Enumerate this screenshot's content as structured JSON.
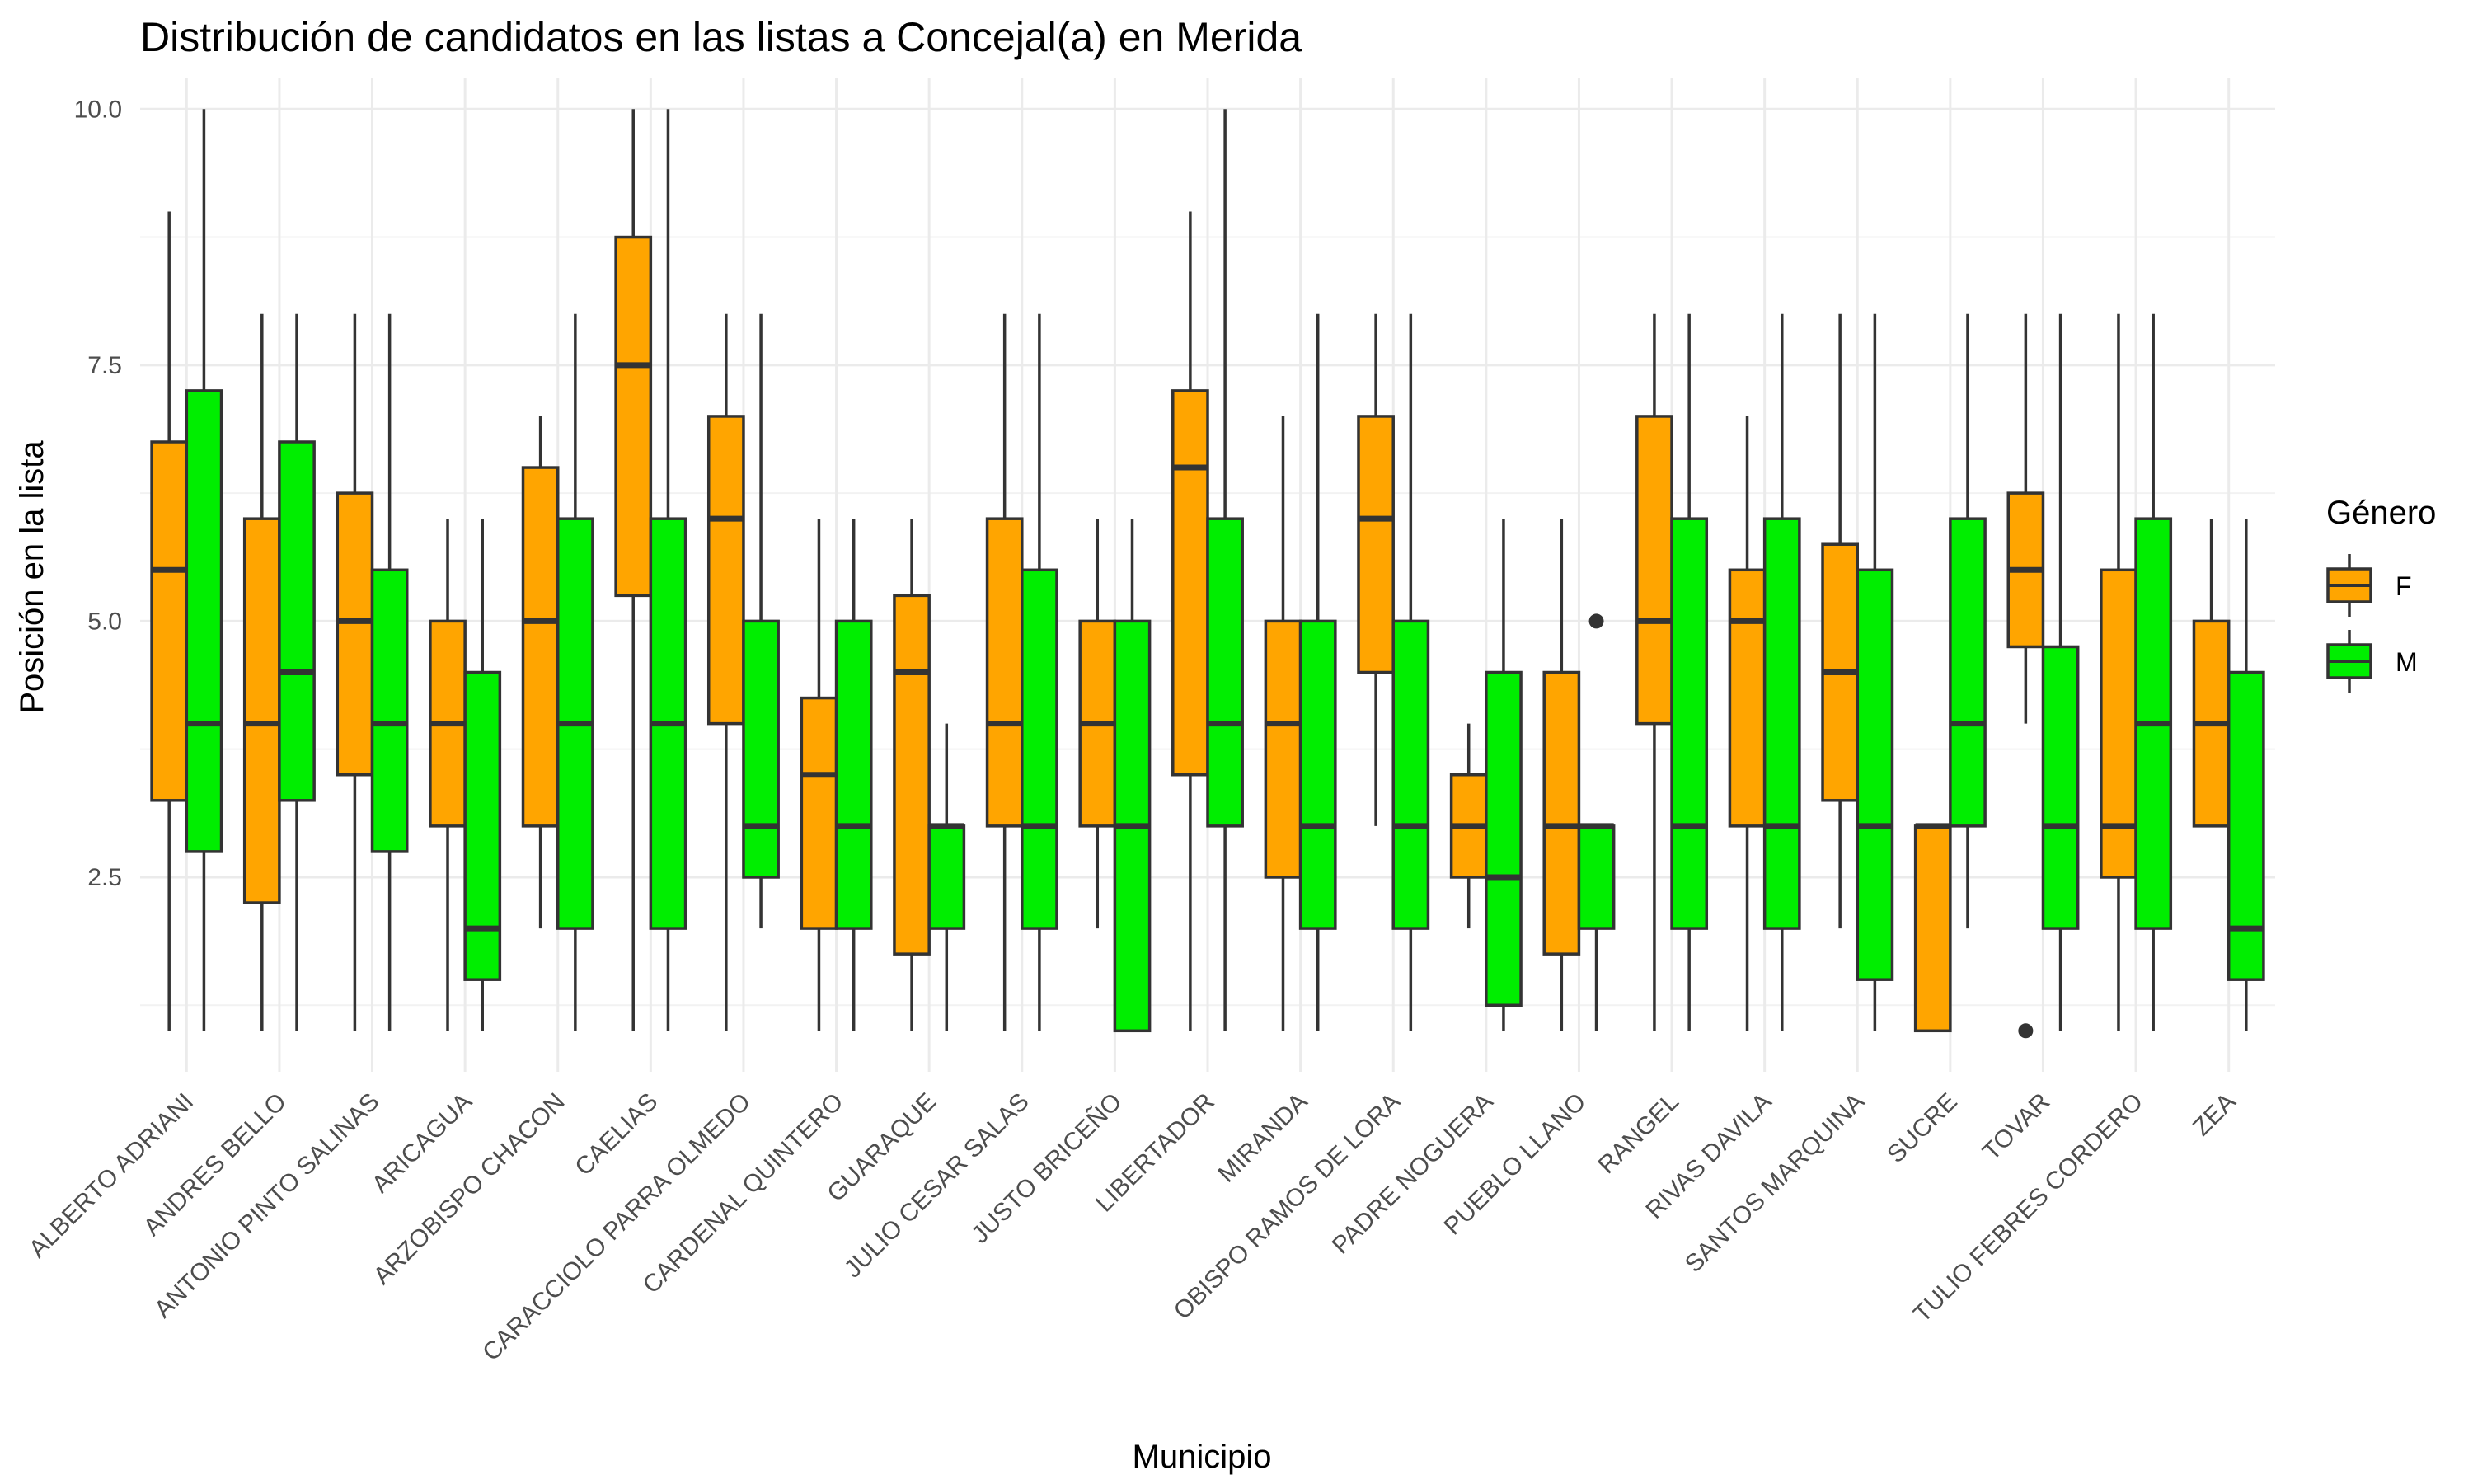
{
  "chart_data": {
    "type": "boxplot",
    "title": "Distribución de candidatos en las listas a Concejal(a) en Merida",
    "xlabel": "Municipio",
    "ylabel": "Posición en la lista",
    "ylim": [
      0.6,
      10.3
    ],
    "yticks": [
      2.5,
      5.0,
      7.5,
      10.0
    ],
    "ytick_labels": [
      "2.5",
      "5.0",
      "7.5",
      "10.0"
    ],
    "grid": true,
    "legend": {
      "title": "Género",
      "placement": "right",
      "entries": [
        {
          "key": "F",
          "color": "#FFA500"
        },
        {
          "key": "M",
          "color": "#00EE00"
        }
      ]
    },
    "categories": [
      "ALBERTO ADRIANI",
      "ANDRES BELLO",
      "ANTONIO PINTO SALINAS",
      "ARICAGUA",
      "ARZOBISPO CHACON",
      "CAELIAS",
      "CARACCIOLO PARRA OLMEDO",
      "CARDENAL QUINTERO",
      "GUARAQUE",
      "JULIO CESAR SALAS",
      "JUSTO BRICEÑO",
      "LIBERTADOR",
      "MIRANDA",
      "OBISPO RAMOS DE LORA",
      "PADRE NOGUERA",
      "PUEBLO LLANO",
      "RANGEL",
      "RIVAS DAVILA",
      "SANTOS MARQUINA",
      "SUCRE",
      "TOVAR",
      "TULIO FEBRES CORDERO",
      "ZEA"
    ],
    "series": [
      {
        "name": "F",
        "color": "#FFA500",
        "boxes": [
          {
            "min": 1,
            "q1": 3.25,
            "median": 5.5,
            "q3": 6.75,
            "max": 9,
            "outliers": []
          },
          {
            "min": 1,
            "q1": 2.25,
            "median": 4,
            "q3": 6,
            "max": 8,
            "outliers": []
          },
          {
            "min": 1,
            "q1": 3.5,
            "median": 5,
            "q3": 6.25,
            "max": 8,
            "outliers": []
          },
          {
            "min": 1,
            "q1": 3,
            "median": 4,
            "q3": 5,
            "max": 6,
            "outliers": []
          },
          {
            "min": 2,
            "q1": 3,
            "median": 5,
            "q3": 6.5,
            "max": 7,
            "outliers": []
          },
          {
            "min": 1,
            "q1": 5.25,
            "median": 7.5,
            "q3": 8.75,
            "max": 10,
            "outliers": []
          },
          {
            "min": 1,
            "q1": 4,
            "median": 6,
            "q3": 7,
            "max": 8,
            "outliers": []
          },
          {
            "min": 1,
            "q1": 2,
            "median": 3.5,
            "q3": 4.25,
            "max": 6,
            "outliers": []
          },
          {
            "min": 1,
            "q1": 1.75,
            "median": 4.5,
            "q3": 5.25,
            "max": 6,
            "outliers": []
          },
          {
            "min": 1,
            "q1": 3,
            "median": 4,
            "q3": 6,
            "max": 8,
            "outliers": []
          },
          {
            "min": 2,
            "q1": 3,
            "median": 4,
            "q3": 5,
            "max": 6,
            "outliers": []
          },
          {
            "min": 1,
            "q1": 3.5,
            "median": 6.5,
            "q3": 7.25,
            "max": 9,
            "outliers": []
          },
          {
            "min": 1,
            "q1": 2.5,
            "median": 4,
            "q3": 5,
            "max": 7,
            "outliers": []
          },
          {
            "min": 3,
            "q1": 4.5,
            "median": 6,
            "q3": 7,
            "max": 8,
            "outliers": []
          },
          {
            "min": 2,
            "q1": 2.5,
            "median": 3,
            "q3": 3.5,
            "max": 4,
            "outliers": []
          },
          {
            "min": 1,
            "q1": 1.75,
            "median": 3,
            "q3": 4.5,
            "max": 6,
            "outliers": []
          },
          {
            "min": 1,
            "q1": 4,
            "median": 5,
            "q3": 7,
            "max": 8,
            "outliers": []
          },
          {
            "min": 1,
            "q1": 3,
            "median": 5,
            "q3": 5.5,
            "max": 7,
            "outliers": []
          },
          {
            "min": 2,
            "q1": 3.25,
            "median": 4.5,
            "q3": 5.75,
            "max": 8,
            "outliers": []
          },
          {
            "min": 1,
            "q1": 1,
            "median": 3,
            "q3": 3,
            "max": 3,
            "outliers": []
          },
          {
            "min": 4,
            "q1": 4.75,
            "median": 5.5,
            "q3": 6.25,
            "max": 8,
            "outliers": [
              1
            ]
          },
          {
            "min": 1,
            "q1": 2.5,
            "median": 3,
            "q3": 5.5,
            "max": 8,
            "outliers": []
          },
          {
            "min": 3,
            "q1": 3,
            "median": 4,
            "q3": 5,
            "max": 6,
            "outliers": []
          }
        ]
      },
      {
        "name": "M",
        "color": "#00EE00",
        "boxes": [
          {
            "min": 1,
            "q1": 2.75,
            "median": 4,
            "q3": 7.25,
            "max": 10,
            "outliers": []
          },
          {
            "min": 1,
            "q1": 3.25,
            "median": 4.5,
            "q3": 6.75,
            "max": 8,
            "outliers": []
          },
          {
            "min": 1,
            "q1": 2.75,
            "median": 4,
            "q3": 5.5,
            "max": 8,
            "outliers": []
          },
          {
            "min": 1,
            "q1": 1.5,
            "median": 2,
            "q3": 4.5,
            "max": 6,
            "outliers": []
          },
          {
            "min": 1,
            "q1": 2,
            "median": 4,
            "q3": 6,
            "max": 8,
            "outliers": []
          },
          {
            "min": 1,
            "q1": 2,
            "median": 4,
            "q3": 6,
            "max": 10,
            "outliers": []
          },
          {
            "min": 2,
            "q1": 2.5,
            "median": 3,
            "q3": 5,
            "max": 8,
            "outliers": []
          },
          {
            "min": 1,
            "q1": 2,
            "median": 3,
            "q3": 5,
            "max": 6,
            "outliers": []
          },
          {
            "min": 1,
            "q1": 2,
            "median": 3,
            "q3": 3,
            "max": 4,
            "outliers": []
          },
          {
            "min": 1,
            "q1": 2,
            "median": 3,
            "q3": 5.5,
            "max": 8,
            "outliers": []
          },
          {
            "min": 1,
            "q1": 1,
            "median": 3,
            "q3": 5,
            "max": 6,
            "outliers": []
          },
          {
            "min": 1,
            "q1": 3,
            "median": 4,
            "q3": 6,
            "max": 10,
            "outliers": []
          },
          {
            "min": 1,
            "q1": 2,
            "median": 3,
            "q3": 5,
            "max": 8,
            "outliers": []
          },
          {
            "min": 1,
            "q1": 2,
            "median": 3,
            "q3": 5,
            "max": 8,
            "outliers": []
          },
          {
            "min": 1,
            "q1": 1.25,
            "median": 2.5,
            "q3": 4.5,
            "max": 6,
            "outliers": []
          },
          {
            "min": 1,
            "q1": 2,
            "median": 3,
            "q3": 3,
            "max": 3,
            "outliers": [
              5
            ]
          },
          {
            "min": 1,
            "q1": 2,
            "median": 3,
            "q3": 6,
            "max": 8,
            "outliers": []
          },
          {
            "min": 1,
            "q1": 2,
            "median": 3,
            "q3": 6,
            "max": 8,
            "outliers": []
          },
          {
            "min": 1,
            "q1": 1.5,
            "median": 3,
            "q3": 5.5,
            "max": 8,
            "outliers": []
          },
          {
            "min": 2,
            "q1": 3,
            "median": 4,
            "q3": 6,
            "max": 8,
            "outliers": []
          },
          {
            "min": 1,
            "q1": 2,
            "median": 3,
            "q3": 4.75,
            "max": 8,
            "outliers": []
          },
          {
            "min": 1,
            "q1": 2,
            "median": 4,
            "q3": 6,
            "max": 8,
            "outliers": []
          },
          {
            "min": 1,
            "q1": 1.5,
            "median": 2,
            "q3": 4.5,
            "max": 6,
            "outliers": []
          }
        ]
      }
    ]
  }
}
